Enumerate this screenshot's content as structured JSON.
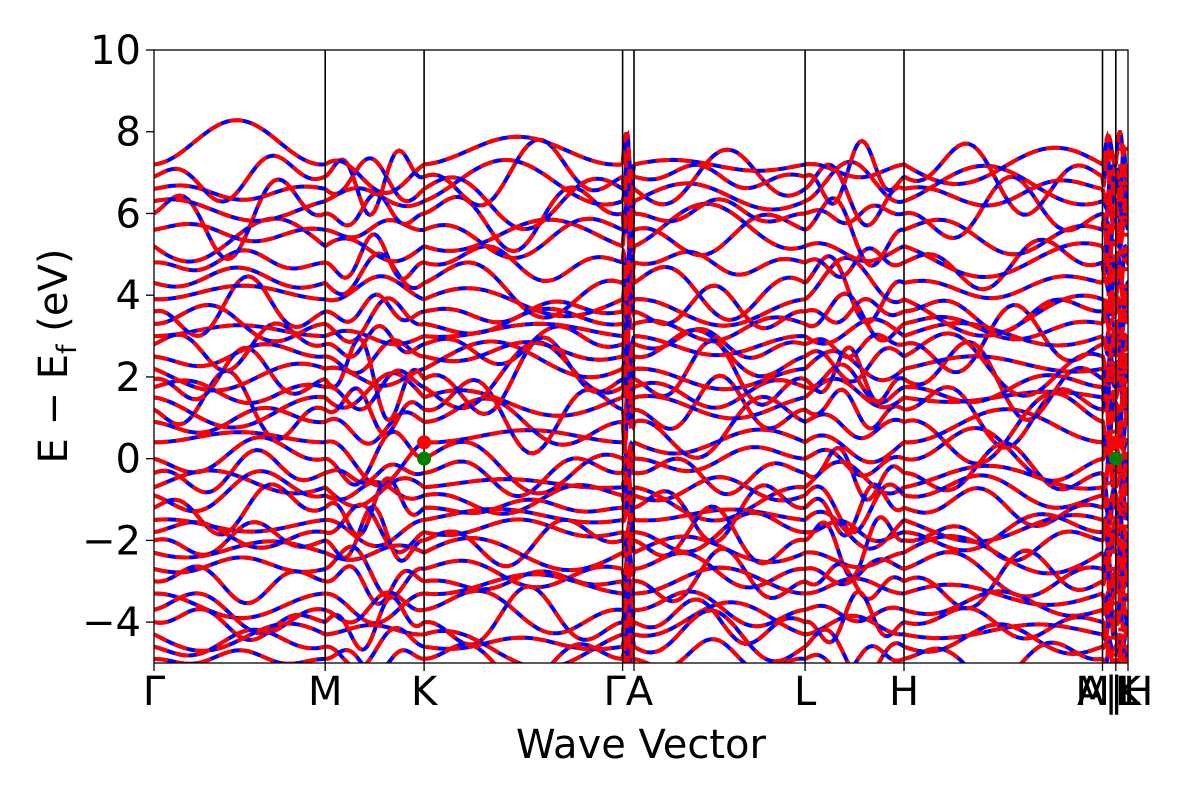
{
  "chart_data": {
    "type": "line",
    "xlabel": "Wave Vector",
    "ylabel": "E − E",
    "ylabel_sub": "f",
    "ylabel_unit": " (eV)",
    "ylim": [
      -5,
      10
    ],
    "yticks": [
      -4,
      -2,
      0,
      2,
      4,
      6,
      8,
      10
    ],
    "xlim": [
      0,
      1
    ],
    "grid": false,
    "kpoints": [
      {
        "label": "Γ",
        "x": 0.0
      },
      {
        "label": "M",
        "x": 0.1758
      },
      {
        "label": "K",
        "x": 0.2773
      },
      {
        "label": "Γ",
        "x": 0.4811
      },
      {
        "label": "A",
        "x": 0.4928
      },
      {
        "label": "L",
        "x": 0.6685
      },
      {
        "label": "H",
        "x": 0.77
      },
      {
        "label": "A",
        "x": 0.9738
      },
      {
        "label": "L",
        "x": 0.9875
      },
      {
        "label": "M",
        "x": 0.9875
      },
      {
        "label": "H",
        "x": 1.0
      },
      {
        "label": "K",
        "x": 1.0
      }
    ],
    "kpoint_tick_labels": [
      {
        "text": "Γ",
        "x": 0.0
      },
      {
        "text": "M",
        "x": 0.1758
      },
      {
        "text": "K",
        "x": 0.2773
      },
      {
        "text": "ΓA",
        "x": 0.487
      },
      {
        "text": "L",
        "x": 0.6685
      },
      {
        "text": "H",
        "x": 0.77
      },
      {
        "text": "A|L",
        "x": 0.98
      },
      {
        "text": "M|H",
        "x": 0.986
      },
      {
        "text": "K",
        "x": 1.0
      }
    ],
    "series": [
      {
        "color": "#0000ff",
        "style": "solid"
      },
      {
        "color": "#ff0000",
        "style": "dashed"
      }
    ],
    "markers": [
      {
        "x": 0.2773,
        "y": 0.4,
        "color": "#ff0000"
      },
      {
        "x": 0.2773,
        "y": 0.0,
        "color": "#008000"
      },
      {
        "x": 0.9875,
        "y": 0.4,
        "color": "#ff0000"
      },
      {
        "x": 0.9875,
        "y": 0.0,
        "color": "#008000"
      }
    ],
    "band_gap_eV": 0.4
  }
}
